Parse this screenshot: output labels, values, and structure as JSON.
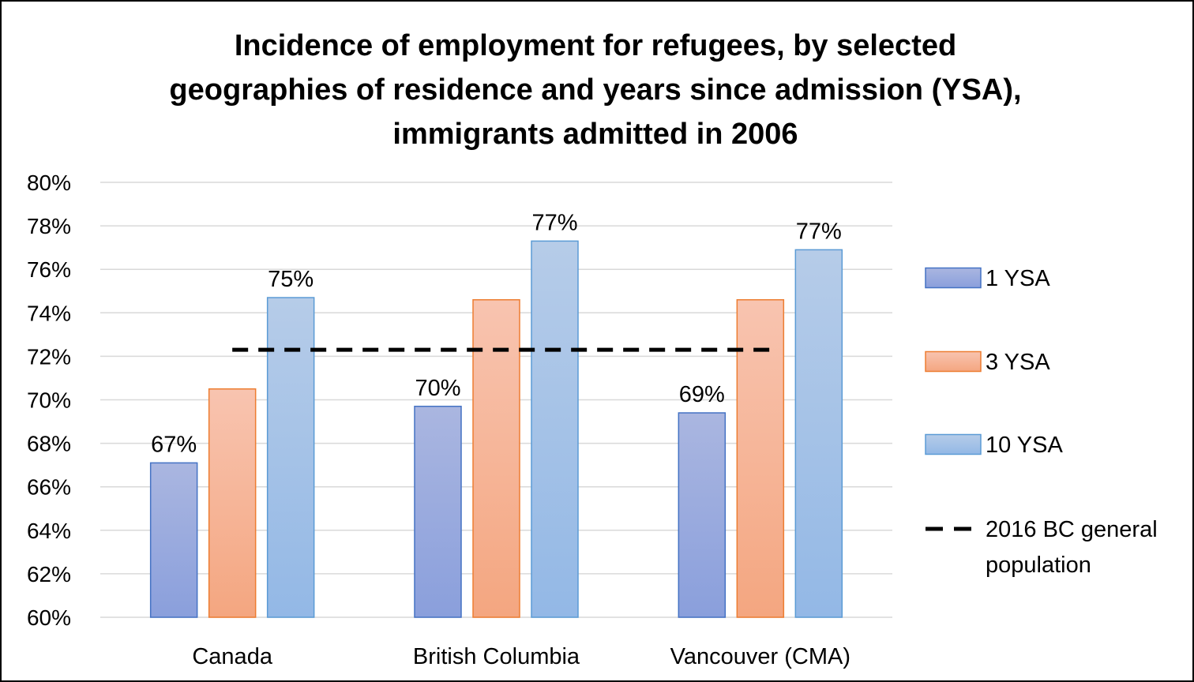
{
  "chart_data": {
    "type": "bar",
    "title_lines": [
      "Incidence of employment for refugees, by selected",
      "geographies of residence and years since admission (YSA),",
      "immigrants admitted in 2006"
    ],
    "categories": [
      "Canada",
      "British Columbia",
      "Vancouver (CMA)"
    ],
    "series": [
      {
        "name": "1 YSA",
        "values": [
          67.1,
          69.7,
          69.4
        ],
        "labels": [
          "67%",
          "70%",
          "69%"
        ],
        "fill_top": "#aab6e0",
        "fill_bottom": "#8a9fdc",
        "stroke": "#4472c4"
      },
      {
        "name": "3 YSA",
        "values": [
          70.5,
          74.6,
          74.6
        ],
        "labels": [
          "",
          "",
          ""
        ],
        "fill_top": "#f8c4b0",
        "fill_bottom": "#f4a680",
        "stroke": "#ed7d31"
      },
      {
        "name": "10 YSA",
        "values": [
          74.7,
          77.3,
          76.9
        ],
        "labels": [
          "75%",
          "77%",
          "77%"
        ],
        "fill_top": "#b6cce8",
        "fill_bottom": "#93b8e6",
        "stroke": "#5b9bd5"
      }
    ],
    "reference_line": {
      "name": "2016 BC general population",
      "legend_lines": [
        "2016 BC general",
        "population"
      ],
      "value": 72.3,
      "style": "dashed",
      "color": "#000000"
    },
    "y_axis": {
      "min": 60,
      "max": 80,
      "step": 2,
      "tick_labels": [
        "60%",
        "62%",
        "64%",
        "66%",
        "68%",
        "70%",
        "72%",
        "74%",
        "76%",
        "78%",
        "80%"
      ]
    },
    "grid": true,
    "gridline_color": "#d9d9d9",
    "legend_position": "right"
  }
}
